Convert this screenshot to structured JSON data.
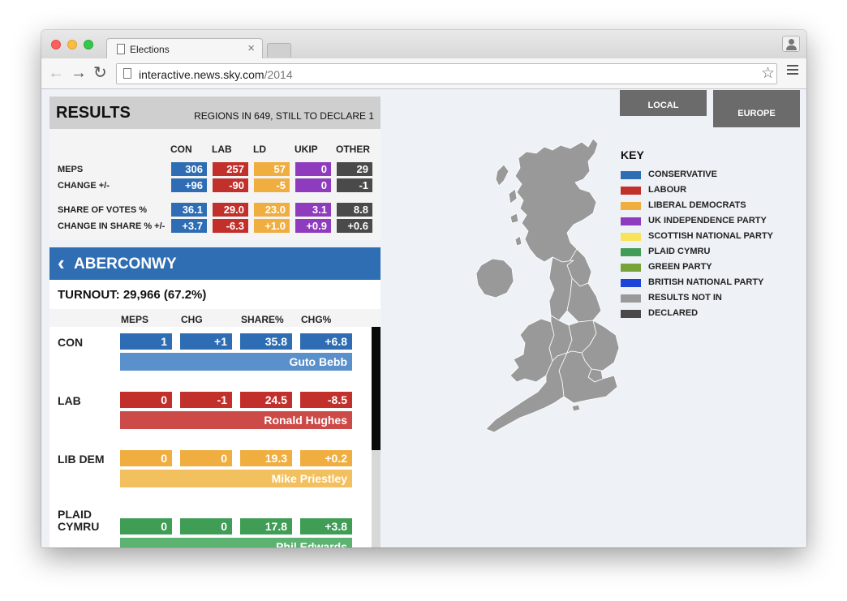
{
  "browser": {
    "tab_title": "Elections",
    "url_host": "interactive.news.sky.com",
    "url_path": "/2014"
  },
  "results": {
    "title": "RESULTS",
    "regions_status": "REGIONS IN 649, STILL TO DECLARE 1",
    "columns": [
      "CON",
      "LAB",
      "LD",
      "UKIP",
      "OTHER"
    ],
    "rows": [
      {
        "label": "MEPS",
        "values": [
          "306",
          "257",
          "57",
          "0",
          "29"
        ]
      },
      {
        "label": "CHANGE +/-",
        "values": [
          "+96",
          "-90",
          "-5",
          "0",
          "-1"
        ]
      },
      {
        "label": "SHARE OF VOTES %",
        "values": [
          "36.1",
          "29.0",
          "23.0",
          "3.1",
          "8.8"
        ]
      },
      {
        "label": "CHANGE IN SHARE % +/-",
        "values": [
          "+3.7",
          "-6.3",
          "+1.0",
          "+0.9",
          "+0.6"
        ]
      }
    ]
  },
  "constituency": {
    "name": "ABERCONWY",
    "turnout": "TURNOUT: 29,966 (67.2%)",
    "columns": [
      "MEPS",
      "CHG",
      "SHARE%",
      "CHG%"
    ],
    "candidates": [
      {
        "party": "CON",
        "meps": "1",
        "chg": "+1",
        "share": "35.8",
        "chg_share": "+6.8",
        "name": "Guto Bebb"
      },
      {
        "party": "LAB",
        "meps": "0",
        "chg": "-1",
        "share": "24.5",
        "chg_share": "-8.5",
        "name": "Ronald Hughes"
      },
      {
        "party": "LIB DEM",
        "meps": "0",
        "chg": "0",
        "share": "19.3",
        "chg_share": "+0.2",
        "name": "Mike Priestley"
      },
      {
        "party": "PLAID\nCYMRU",
        "meps": "0",
        "chg": "0",
        "share": "17.8",
        "chg_share": "+3.8",
        "name": "Phil Edwards"
      }
    ]
  },
  "view_buttons": {
    "local": "LOCAL",
    "europe": "EUROPE"
  },
  "key": {
    "title": "KEY",
    "items": [
      {
        "label": "CONSERVATIVE",
        "color": "#2e6db3"
      },
      {
        "label": "LABOUR",
        "color": "#c2302c"
      },
      {
        "label": "LIBERAL DEMOCRATS",
        "color": "#f0ae40"
      },
      {
        "label": "UK INDEPENDENCE PARTY",
        "color": "#8f3bbe"
      },
      {
        "label": "SCOTTISH NATIONAL PARTY",
        "color": "#f7e45b"
      },
      {
        "label": "PLAID CYMRU",
        "color": "#3f9d55"
      },
      {
        "label": "GREEN PARTY",
        "color": "#78a23a"
      },
      {
        "label": "BRITISH NATIONAL PARTY",
        "color": "#1d43d8"
      },
      {
        "label": "RESULTS NOT IN",
        "color": "#999999"
      },
      {
        "label": "DECLARED",
        "color": "#4a4a4a"
      }
    ]
  },
  "icons": {
    "back": "arrow-left-icon",
    "forward": "arrow-right-icon",
    "reload": "reload-icon",
    "bookmark": "star-icon",
    "menu": "hamburger-icon",
    "constituency_back": "chevron-left-icon"
  },
  "map_color": "#999999"
}
